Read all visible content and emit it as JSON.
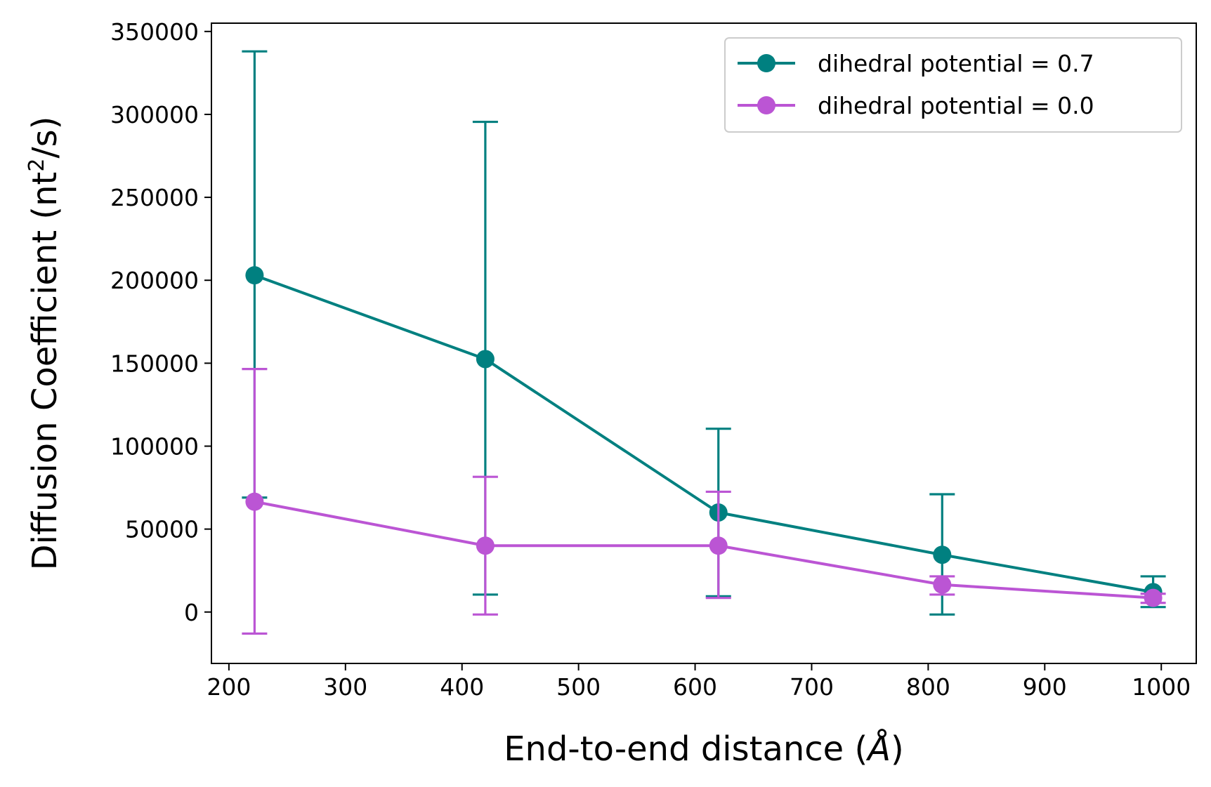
{
  "chart_data": {
    "type": "line",
    "title": "",
    "xlabel_main": "End-to-end distance (",
    "xlabel_unit": "Å",
    "xlabel_close": ")",
    "ylabel_main": "Diffusion Coefficient (nt",
    "ylabel_sup": "2",
    "ylabel_close": "/s)",
    "xlim": [
      185,
      1030
    ],
    "ylim": [
      -31000,
      355000
    ],
    "xticks": [
      200,
      300,
      400,
      500,
      600,
      700,
      800,
      900,
      1000
    ],
    "yticks": [
      0,
      50000,
      100000,
      150000,
      200000,
      250000,
      300000,
      350000
    ],
    "grid": false,
    "legend_position": "top-right",
    "series": [
      {
        "name": "dihedral potential = 0.7",
        "color": "#008080",
        "x": [
          222,
          420,
          620,
          812,
          993
        ],
        "y": [
          203000,
          152500,
          60000,
          34500,
          12000
        ],
        "err_low": [
          69000,
          10500,
          9500,
          -1500,
          3000
        ],
        "err_high": [
          338000,
          295500,
          110500,
          71000,
          21500
        ]
      },
      {
        "name": "dihedral potential = 0.0",
        "color": "#bb55d4",
        "x": [
          222,
          420,
          620,
          812,
          993
        ],
        "y": [
          66500,
          40000,
          40000,
          16500,
          8500
        ],
        "err_low": [
          -13000,
          -1500,
          8500,
          10500,
          5500
        ],
        "err_high": [
          146500,
          81500,
          72500,
          21500,
          11000
        ]
      }
    ]
  }
}
